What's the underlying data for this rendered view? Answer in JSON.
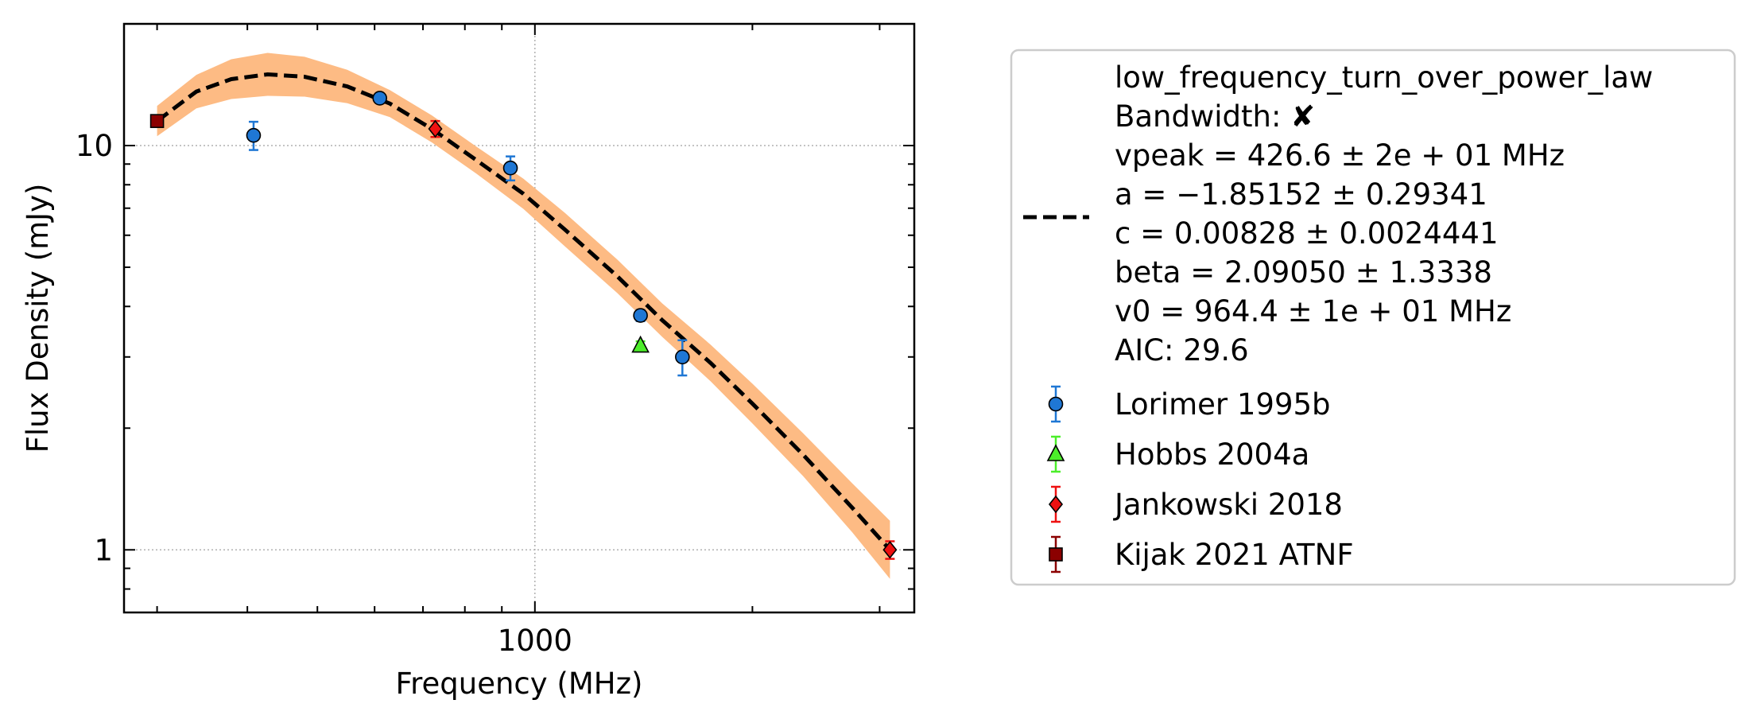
{
  "chart_data": {
    "type": "scatter",
    "xlabel": "Frequency (MHz)",
    "ylabel": "Flux Density (mJy)",
    "xscale": "log",
    "yscale": "log",
    "xlim": [
      270,
      3350
    ],
    "ylim": [
      0.7,
      20
    ],
    "x_ticks": [
      {
        "value": 1000,
        "label": "1000"
      }
    ],
    "y_ticks": [
      {
        "value": 1,
        "label": "1"
      },
      {
        "value": 10,
        "label": "10"
      }
    ],
    "grid": true,
    "legend_position": "outside-right",
    "fit": {
      "name": "low_frequency_turn_over_power_law",
      "lines": [
        "low_frequency_turn_over_power_law",
        "Bandwidth: ✘",
        "vpeak = 426.6 ± 2e + 01 MHz",
        "a = −1.85152 ± 0.29341",
        "c = 0.00828 ± 0.0024441",
        "beta = 2.09050 ± 1.3338",
        "v0 = 964.4 ± 1e + 01 MHz",
        "AIC: 29.6"
      ],
      "color": "#000000",
      "band_color": "#fdbb84",
      "curve": {
        "x": [
          300,
          340,
          380,
          426.6,
          480,
          550,
          630,
          720,
          830,
          964,
          1100,
          1300,
          1500,
          1750,
          2000,
          2350,
          2750,
          3100
        ],
        "y": [
          11.5,
          13.6,
          14.6,
          15.0,
          14.8,
          14.0,
          12.7,
          11.0,
          9.2,
          7.6,
          6.2,
          4.75,
          3.7,
          2.9,
          2.3,
          1.72,
          1.27,
          1.0
        ],
        "band_frac": [
          0.09,
          0.1,
          0.12,
          0.13,
          0.12,
          0.1,
          0.08,
          0.08,
          0.08,
          0.09,
          0.1,
          0.1,
          0.1,
          0.11,
          0.12,
          0.13,
          0.15,
          0.18
        ]
      }
    },
    "series": [
      {
        "name": "Lorimer 1995b",
        "marker": "circle",
        "color": "#1f77d4",
        "ecolor": "#1f77d4",
        "points": [
          {
            "x": 408,
            "y": 10.6,
            "err": 0.85
          },
          {
            "x": 610,
            "y": 13.1,
            "err": 0.3
          },
          {
            "x": 925,
            "y": 8.8,
            "err": 0.6
          },
          {
            "x": 1400,
            "y": 3.8,
            "err": 0.12
          },
          {
            "x": 1600,
            "y": 3.0,
            "err": 0.3
          }
        ]
      },
      {
        "name": "Hobbs 2004a",
        "marker": "triangle",
        "color": "#4cee2a",
        "ecolor": "#4cee2a",
        "points": [
          {
            "x": 1400,
            "y": 3.2,
            "err": 0.08
          }
        ]
      },
      {
        "name": "Jankowski 2018",
        "marker": "diamond",
        "color": "#ee1111",
        "ecolor": "#ee1111",
        "points": [
          {
            "x": 728,
            "y": 11.0,
            "err": 0.5
          },
          {
            "x": 3100,
            "y": 1.0,
            "err": 0.05
          }
        ]
      },
      {
        "name": "Kijak 2021 ATNF",
        "marker": "square",
        "color": "#8b0000",
        "ecolor": "#8b0000",
        "points": [
          {
            "x": 300,
            "y": 11.5,
            "err": 0.2
          }
        ]
      }
    ]
  }
}
